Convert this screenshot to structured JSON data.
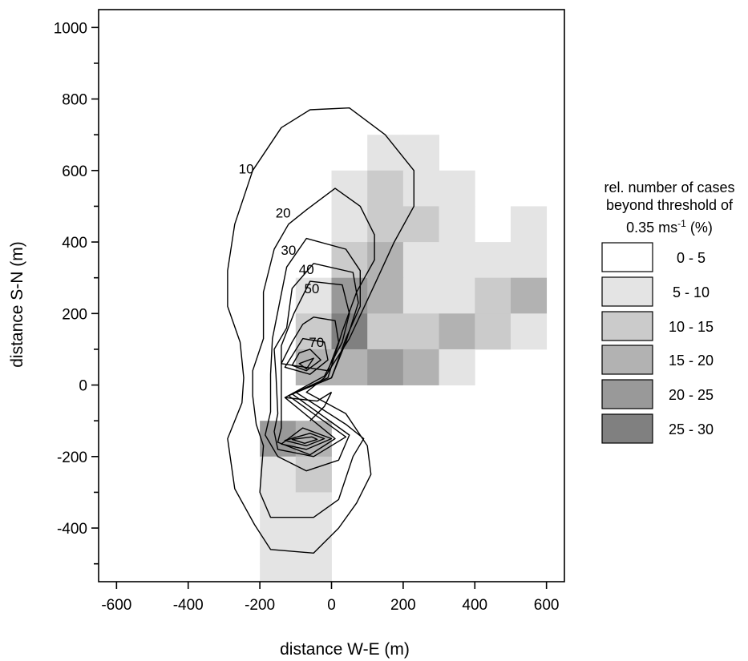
{
  "chart_data": {
    "type": "heatmap",
    "title": "",
    "xlabel": "distance W-E (m)",
    "ylabel": "distance S-N (m)",
    "xlim": [
      -650,
      650
    ],
    "ylim": [
      -550,
      1050
    ],
    "xticks": [
      -600,
      -400,
      -200,
      0,
      200,
      400,
      600
    ],
    "xtick_labels": [
      "-600",
      "-400",
      "-200",
      "0",
      "200",
      "400",
      "600"
    ],
    "yticks": [
      -400,
      -200,
      0,
      200,
      400,
      600,
      800,
      1000
    ],
    "ytick_labels": [
      "-400",
      "-200",
      "0",
      "200",
      "400",
      "600",
      "800",
      "1000"
    ],
    "grid": false,
    "cell_size_m": 100,
    "legend": {
      "position": "right",
      "title_lines": [
        "rel. number of cases",
        "beyond threshold of"
      ],
      "title_unit": {
        "base": "0.35 ms",
        "sup": "-1",
        "suffix": " (%)"
      },
      "classes": [
        {
          "label": "0 - 5",
          "color": "#ffffff"
        },
        {
          "label": "5 - 10",
          "color": "#e4e4e4"
        },
        {
          "label": "10 - 15",
          "color": "#cbcbcb"
        },
        {
          "label": "15 - 20",
          "color": "#b2b2b2"
        },
        {
          "label": "20 - 25",
          "color": "#999999"
        },
        {
          "label": "25 - 30",
          "color": "#808080"
        }
      ]
    },
    "cells": [
      {
        "x0": 100,
        "y0": 600,
        "c": 1
      },
      {
        "x0": 200,
        "y0": 600,
        "c": 1
      },
      {
        "x0": 0,
        "y0": 500,
        "c": 1
      },
      {
        "x0": 100,
        "y0": 500,
        "c": 2
      },
      {
        "x0": 200,
        "y0": 500,
        "c": 1
      },
      {
        "x0": 300,
        "y0": 500,
        "c": 1
      },
      {
        "x0": 0,
        "y0": 400,
        "c": 1
      },
      {
        "x0": 100,
        "y0": 400,
        "c": 2
      },
      {
        "x0": 200,
        "y0": 400,
        "c": 2
      },
      {
        "x0": 300,
        "y0": 400,
        "c": 1
      },
      {
        "x0": 500,
        "y0": 400,
        "c": 1
      },
      {
        "x0": 0,
        "y0": 300,
        "c": 2
      },
      {
        "x0": 100,
        "y0": 300,
        "c": 3
      },
      {
        "x0": 200,
        "y0": 300,
        "c": 1
      },
      {
        "x0": 300,
        "y0": 300,
        "c": 1
      },
      {
        "x0": 400,
        "y0": 300,
        "c": 1
      },
      {
        "x0": 500,
        "y0": 300,
        "c": 1
      },
      {
        "x0": -100,
        "y0": 200,
        "c": 1
      },
      {
        "x0": 0,
        "y0": 200,
        "c": 4
      },
      {
        "x0": 100,
        "y0": 200,
        "c": 3
      },
      {
        "x0": 200,
        "y0": 200,
        "c": 1
      },
      {
        "x0": 300,
        "y0": 200,
        "c": 1
      },
      {
        "x0": 400,
        "y0": 200,
        "c": 2
      },
      {
        "x0": 500,
        "y0": 200,
        "c": 3
      },
      {
        "x0": -100,
        "y0": 100,
        "c": 2
      },
      {
        "x0": 0,
        "y0": 100,
        "c": 5
      },
      {
        "x0": 100,
        "y0": 100,
        "c": 2
      },
      {
        "x0": 200,
        "y0": 100,
        "c": 2
      },
      {
        "x0": 300,
        "y0": 100,
        "c": 3
      },
      {
        "x0": 400,
        "y0": 100,
        "c": 2
      },
      {
        "x0": 500,
        "y0": 100,
        "c": 1
      },
      {
        "x0": -100,
        "y0": 0,
        "c": 3
      },
      {
        "x0": 0,
        "y0": 0,
        "c": 3
      },
      {
        "x0": 100,
        "y0": 0,
        "c": 4
      },
      {
        "x0": 200,
        "y0": 0,
        "c": 3
      },
      {
        "x0": 300,
        "y0": 0,
        "c": 1
      },
      {
        "x0": -200,
        "y0": -200,
        "c": 4
      },
      {
        "x0": -100,
        "y0": -200,
        "c": 3
      },
      {
        "x0": -200,
        "y0": -300,
        "c": 1
      },
      {
        "x0": -100,
        "y0": -300,
        "c": 2
      },
      {
        "x0": -200,
        "y0": -400,
        "c": 1
      },
      {
        "x0": -100,
        "y0": -400,
        "c": 1
      },
      {
        "x0": -200,
        "y0": -500,
        "c": 1
      },
      {
        "x0": -100,
        "y0": -500,
        "c": 1
      },
      {
        "x0": -200,
        "y0": -550,
        "x1": 0,
        "y1": -500,
        "c": 1
      }
    ],
    "contours": [
      {
        "level": 10,
        "label": "10",
        "label_at": [
          -238,
          605
        ],
        "closed": true,
        "points": [
          [
            -60,
            770
          ],
          [
            50,
            775
          ],
          [
            150,
            700
          ],
          [
            230,
            600
          ],
          [
            230,
            500
          ],
          [
            175,
            400
          ],
          [
            120,
            280
          ],
          [
            50,
            130
          ],
          [
            -20,
            20
          ],
          [
            -70,
            -20
          ],
          [
            40,
            -80
          ],
          [
            100,
            -170
          ],
          [
            110,
            -250
          ],
          [
            70,
            -330
          ],
          [
            20,
            -400
          ],
          [
            -50,
            -470
          ],
          [
            -170,
            -460
          ],
          [
            -215,
            -390
          ],
          [
            -270,
            -290
          ],
          [
            -290,
            -150
          ],
          [
            -250,
            -50
          ],
          [
            -245,
            20
          ],
          [
            -255,
            120
          ],
          [
            -290,
            220
          ],
          [
            -290,
            320
          ],
          [
            -270,
            450
          ],
          [
            -220,
            600
          ],
          [
            -140,
            720
          ]
        ]
      },
      {
        "level": 20,
        "label": "20",
        "label_at": [
          -135,
          482
        ],
        "closed": true,
        "points": [
          [
            -70,
            490
          ],
          [
            10,
            550
          ],
          [
            80,
            500
          ],
          [
            120,
            420
          ],
          [
            120,
            350
          ],
          [
            70,
            260
          ],
          [
            30,
            150
          ],
          [
            -10,
            20
          ],
          [
            -100,
            -20
          ],
          [
            40,
            -110
          ],
          [
            90,
            -150
          ],
          [
            60,
            -200
          ],
          [
            20,
            -320
          ],
          [
            -50,
            -370
          ],
          [
            -170,
            -370
          ],
          [
            -200,
            -300
          ],
          [
            -190,
            -170
          ],
          [
            -210,
            -110
          ],
          [
            -220,
            -30
          ],
          [
            -220,
            40
          ],
          [
            -190,
            130
          ],
          [
            -190,
            260
          ],
          [
            -160,
            380
          ],
          [
            -120,
            450
          ]
        ]
      },
      {
        "level": 30,
        "label": "30",
        "label_at": [
          -120,
          378
        ],
        "closed": true,
        "points": [
          [
            -70,
            410
          ],
          [
            40,
            380
          ],
          [
            80,
            320
          ],
          [
            80,
            220
          ],
          [
            40,
            130
          ],
          [
            0,
            20
          ],
          [
            -110,
            -25
          ],
          [
            50,
            -140
          ],
          [
            20,
            -210
          ],
          [
            -70,
            -240
          ],
          [
            -150,
            -200
          ],
          [
            -185,
            -140
          ],
          [
            -170,
            -75
          ],
          [
            -170,
            30
          ],
          [
            -165,
            130
          ],
          [
            -145,
            230
          ],
          [
            -125,
            330
          ]
        ]
      },
      {
        "level": 40,
        "label": "40",
        "label_at": [
          -70,
          324
        ],
        "closed": true,
        "points": [
          [
            -50,
            340
          ],
          [
            60,
            315
          ],
          [
            75,
            230
          ],
          [
            40,
            120
          ],
          [
            0,
            20
          ],
          [
            -120,
            -30
          ],
          [
            40,
            -145
          ],
          [
            -50,
            -200
          ],
          [
            -150,
            -180
          ],
          [
            -160,
            -130
          ],
          [
            -150,
            -80
          ],
          [
            -155,
            30
          ],
          [
            -160,
            100
          ],
          [
            -125,
            160
          ],
          [
            -110,
            270
          ]
        ]
      },
      {
        "level": 50,
        "label": "50",
        "label_at": [
          -55,
          270
        ],
        "closed": true,
        "points": [
          [
            -60,
            290
          ],
          [
            30,
            280
          ],
          [
            50,
            200
          ],
          [
            30,
            120
          ],
          [
            -20,
            25
          ],
          [
            -130,
            -35
          ],
          [
            10,
            -150
          ],
          [
            -60,
            -195
          ],
          [
            -150,
            -160
          ],
          [
            -140,
            -120
          ],
          [
            -140,
            50
          ],
          [
            -140,
            110
          ],
          [
            -105,
            200
          ]
        ]
      },
      {
        "level": 60,
        "label": "",
        "closed": true,
        "points": [
          [
            -50,
            190
          ],
          [
            10,
            180
          ],
          [
            20,
            120
          ],
          [
            -10,
            40
          ],
          [
            -140,
            60
          ],
          [
            -110,
            120
          ],
          [
            -80,
            170
          ]
        ]
      },
      {
        "level": 70,
        "label": "70",
        "label_at": [
          -42,
          120
        ],
        "closed": true,
        "points": [
          [
            -80,
            130
          ],
          [
            -20,
            120
          ],
          [
            -10,
            70
          ],
          [
            -60,
            30
          ],
          [
            -130,
            50
          ]
        ]
      },
      {
        "level": 80,
        "label": "",
        "closed": true,
        "points": [
          [
            -60,
            100
          ],
          [
            -30,
            70
          ],
          [
            -70,
            40
          ],
          [
            -110,
            55
          ],
          [
            -90,
            90
          ]
        ]
      },
      {
        "level": 90,
        "label": "",
        "closed": true,
        "points": [
          [
            -50,
            75
          ],
          [
            -70,
            45
          ],
          [
            -90,
            60
          ]
        ]
      },
      {
        "level": 60,
        "label": "",
        "closed": true,
        "points": [
          [
            -80,
            -120
          ],
          [
            0,
            -150
          ],
          [
            -70,
            -180
          ],
          [
            -140,
            -165
          ]
        ]
      },
      {
        "level": 70,
        "label": "",
        "closed": true,
        "points": [
          [
            -60,
            -135
          ],
          [
            -20,
            -150
          ],
          [
            -70,
            -170
          ],
          [
            -130,
            -155
          ]
        ]
      },
      {
        "level": 80,
        "label": "",
        "closed": true,
        "points": [
          [
            -55,
            -145
          ],
          [
            -40,
            -152
          ],
          [
            -75,
            -163
          ],
          [
            -110,
            -152
          ]
        ]
      },
      {
        "level": 50,
        "label": "",
        "closed": false,
        "points": [
          [
            -130,
            -35
          ],
          [
            -40,
            -45
          ],
          [
            0,
            -20
          ]
        ]
      },
      {
        "level": 60,
        "label": "",
        "closed": false,
        "points": [
          [
            -60,
            -100
          ],
          [
            -20,
            -60
          ],
          [
            0,
            -20
          ]
        ]
      }
    ]
  }
}
